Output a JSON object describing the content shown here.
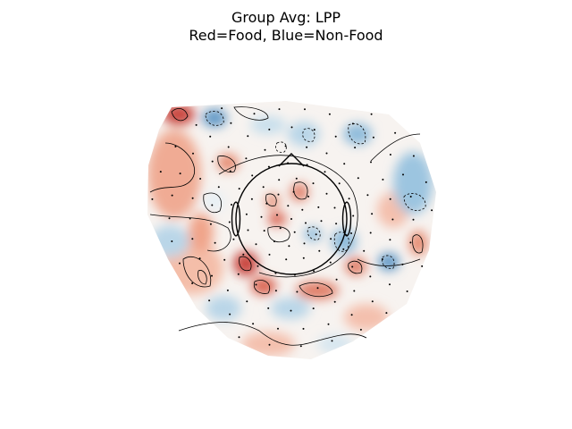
{
  "figure": {
    "title_line1": "Group Avg: LPP",
    "title_line2": "Red=Food, Blue=Non-Food"
  },
  "colors": {
    "positive": "#c9473f",
    "positive_light": "#f3b29a",
    "neutral": "#f7f7f7",
    "negative_light": "#a9cde3",
    "negative": "#3b7fb6",
    "contour": "#000000",
    "sensor": "#000000"
  }
}
